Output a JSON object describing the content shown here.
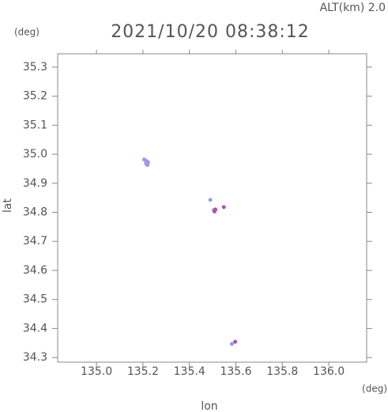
{
  "chart_data": {
    "type": "scatter",
    "title": "2021/10/20 08:38:12",
    "altitude_label": "ALT(km) 2.0",
    "x_label": "lon",
    "y_label": "lat",
    "x_unit": "(deg)",
    "y_unit": "(deg)",
    "xlim": [
      134.833,
      136.163
    ],
    "ylim": [
      34.284,
      35.346
    ],
    "xticks": [
      {
        "value": 135.0,
        "label": "135.0"
      },
      135.2,
      135.4,
      135.6,
      135.8,
      {
        "value": 136.0,
        "label": "136.0"
      }
    ],
    "yticks": [
      34.3,
      34.4,
      34.5,
      34.6,
      34.7,
      34.8,
      34.9,
      {
        "value": 35.0,
        "label": "35.0"
      },
      35.1,
      35.2,
      35.3
    ],
    "series": [
      {
        "color": "#9a9ae8",
        "x": [
          135.205,
          135.212,
          135.218,
          135.214,
          135.222,
          135.219,
          135.49,
          135.505,
          135.583
        ],
        "values": [
          34.982,
          34.978,
          34.975,
          34.968,
          34.972,
          34.963,
          34.843,
          34.808,
          34.347
        ]
      },
      {
        "color": "#b050b0",
        "x": [
          135.508,
          135.512,
          135.548,
          135.597
        ],
        "values": [
          34.803,
          34.81,
          34.818,
          34.354
        ]
      }
    ]
  }
}
